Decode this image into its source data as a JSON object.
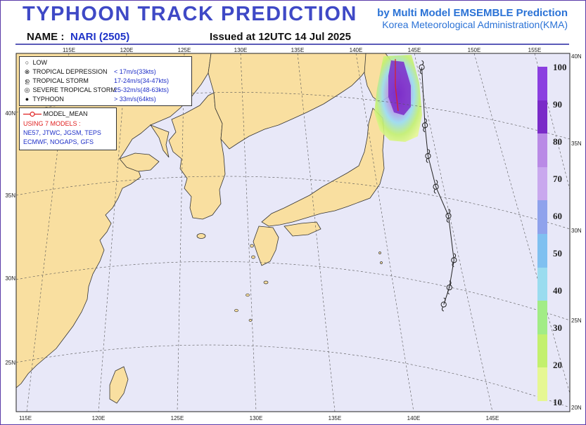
{
  "header": {
    "title": "TYPHOON  TRACK  PREDICTION",
    "org_line1": "by Multi Model EMSEMBLE Prediction",
    "org_line2": "Korea Meteorological Administration(KMA)",
    "name_label": "NAME :",
    "name_value": "NARI (2505)",
    "issued": "Issued at  12UTC 14 Jul 2025"
  },
  "legend": {
    "categories": [
      {
        "symbol": "low-icon",
        "label": "LOW",
        "range": ""
      },
      {
        "symbol": "tropical-depression-icon",
        "label": "TROPICAL DEPRESSION",
        "range": "< 17m/s(33kts)"
      },
      {
        "symbol": "tropical-storm-icon",
        "label": "TROPICAL STORM",
        "range": "17-24m/s(34-47kts)"
      },
      {
        "symbol": "severe-tropical-storm-icon",
        "label": "SEVERE TROPICAL STORM",
        "range": "25-32m/s(48-63kts)"
      },
      {
        "symbol": "typhoon-icon",
        "label": "TYPHOON",
        "range": "> 33m/s(64kts)"
      }
    ],
    "model_mean": "MODEL_MEAN",
    "using_models": "USING 7 MODELS :",
    "models_line1": "NE57, JTWC, JGSM, TEPS",
    "models_line2": "ECMWF, NOGAPS, GFS"
  },
  "axes": {
    "top_lon": [
      "115E",
      "120E",
      "125E",
      "130E",
      "135E",
      "140E",
      "145E",
      "150E",
      "155E"
    ],
    "bottom_lon": [
      "115E",
      "120E",
      "125E",
      "130E",
      "135E",
      "140E",
      "145E"
    ],
    "left_lat": [
      "40N",
      "35N",
      "30N",
      "25N"
    ],
    "right_lat": [
      "40N",
      "35N",
      "30N",
      "25N",
      "20N"
    ]
  },
  "colorbar": {
    "labels": [
      "100",
      "90",
      "80",
      "70",
      "60",
      "50",
      "40",
      "30",
      "20",
      "10"
    ],
    "colors": [
      "#8b3fe0",
      "#7a2bc8",
      "#b98ae6",
      "#c9a8ee",
      "#8fa2ec",
      "#7fc0f0",
      "#9adcef",
      "#a2ec86",
      "#c3f06e",
      "#e6f793"
    ]
  },
  "colors": {
    "land": "#f9dfa0",
    "sea": "#e8e8f8",
    "track": "#222222",
    "model_mean_line": "#e02020"
  },
  "track": {
    "label": "NARI (2505)",
    "points": [
      {
        "lon": 141.8,
        "lat": 25.7
      },
      {
        "lon": 142.1,
        "lat": 26.7
      },
      {
        "lon": 142.3,
        "lat": 28.3
      },
      {
        "lon": 141.8,
        "lat": 30.9
      },
      {
        "lon": 140.9,
        "lat": 32.6
      },
      {
        "lon": 140.3,
        "lat": 34.4
      },
      {
        "lon": 140.0,
        "lat": 36.2
      },
      {
        "lon": 139.6,
        "lat": 39.6
      }
    ]
  }
}
